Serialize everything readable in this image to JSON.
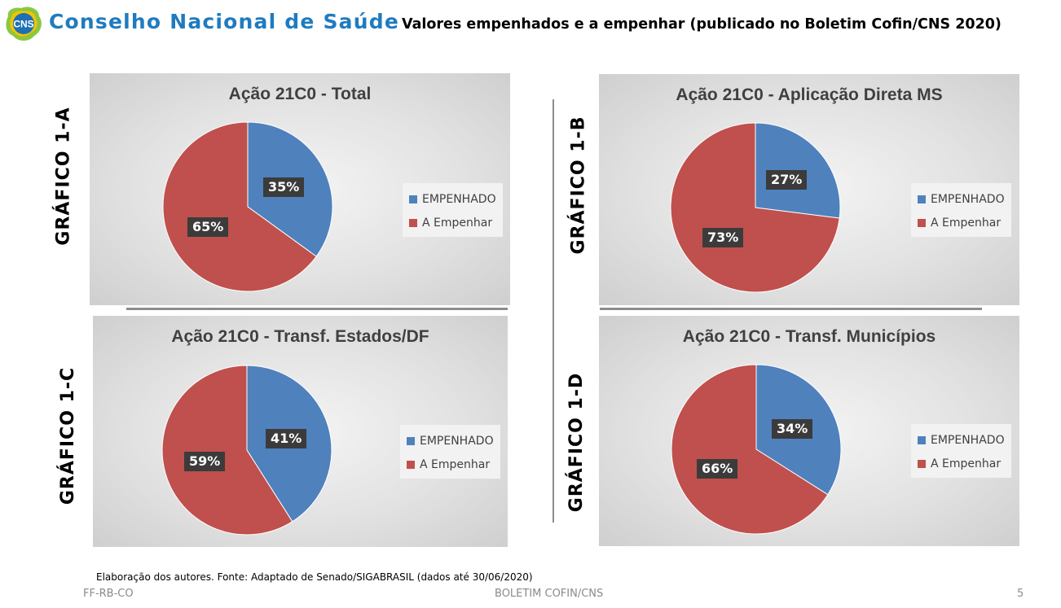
{
  "header": {
    "logo_text": "CNS",
    "org_name": "Conselho Nacional de Saúde",
    "title": "Valores empenhados e a empenhar (publicado no Boletim Cofin/CNS 2020)"
  },
  "colors": {
    "empenhado": "#4f81bd",
    "a_empenhar": "#c0504d",
    "org": "#1f7bbf"
  },
  "chart_data": [
    {
      "type": "pie",
      "id": "a",
      "side_label": "GRÁFICO 1-A",
      "title": "Ação 21C0 - Total",
      "categories": [
        "EMPENHADO",
        "A Empenhar"
      ],
      "values": [
        35,
        65
      ],
      "labels": [
        "35%",
        "65%"
      ],
      "legend": [
        "EMPENHADO",
        "A Empenhar"
      ],
      "legend_position": "right"
    },
    {
      "type": "pie",
      "id": "b",
      "side_label": "GRÁFICO 1-B",
      "title": "Ação 21C0 - Aplicação Direta MS",
      "categories": [
        "EMPENHADO",
        "A Empenhar"
      ],
      "values": [
        27,
        73
      ],
      "labels": [
        "27%",
        "73%"
      ],
      "legend": [
        "EMPENHADO",
        "A Empenhar"
      ],
      "legend_position": "right"
    },
    {
      "type": "pie",
      "id": "c",
      "side_label": "GRÁFICO 1-C",
      "title": "Ação 21C0 - Transf. Estados/DF",
      "categories": [
        "EMPENHADO",
        "A Empenhar"
      ],
      "values": [
        41,
        59
      ],
      "labels": [
        "41%",
        "59%"
      ],
      "legend": [
        "EMPENHADO",
        "A Empenhar"
      ],
      "legend_position": "right"
    },
    {
      "type": "pie",
      "id": "d",
      "side_label": "GRÁFICO 1-D",
      "title": "Ação 21C0 - Transf. Municípios",
      "categories": [
        "EMPENHADO",
        "A Empenhar"
      ],
      "values": [
        34,
        66
      ],
      "labels": [
        "34%",
        "66%"
      ],
      "legend": [
        "EMPENHADO",
        "A Empenhar"
      ],
      "legend_position": "right"
    }
  ],
  "footer": {
    "source": "Elaboração dos autores. Fonte: Adaptado de Senado/SIGABRASIL (dados até 30/06/2020)",
    "left": "FF-RB-CO",
    "center": "BOLETIM COFIN/CNS",
    "page": "5"
  }
}
